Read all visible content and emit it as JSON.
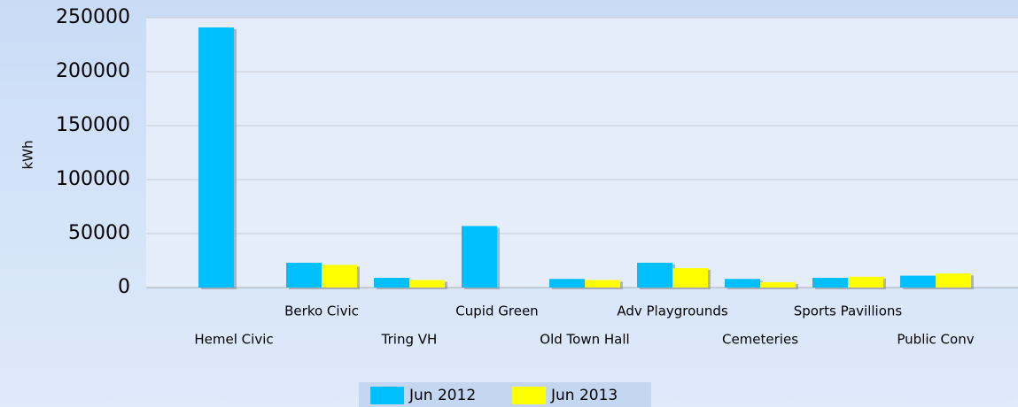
{
  "chart_data": {
    "type": "bar",
    "y_label": "kWh",
    "categories": [
      "Hemel Civic",
      "Berko Civic",
      "Tring VH",
      "Cupid Green",
      "Old Town Hall",
      "Adv Playgrounds",
      "Cemeteries",
      "Sports Pavillions",
      "Public Conv"
    ],
    "series": [
      {
        "name": "Jun 2012",
        "color": "#00bfff",
        "values": [
          241000,
          23000,
          9000,
          57000,
          8000,
          23000,
          8000,
          9000,
          11000
        ]
      },
      {
        "name": "Jun 2013",
        "color": "#ffff00",
        "values": [
          null,
          21000,
          7000,
          null,
          7000,
          18000,
          5000,
          10000,
          13000
        ]
      }
    ],
    "ylim": [
      0,
      250000
    ],
    "yticks": [
      0,
      50000,
      100000,
      150000,
      200000,
      250000
    ],
    "grid": true,
    "legend": "bottom"
  }
}
